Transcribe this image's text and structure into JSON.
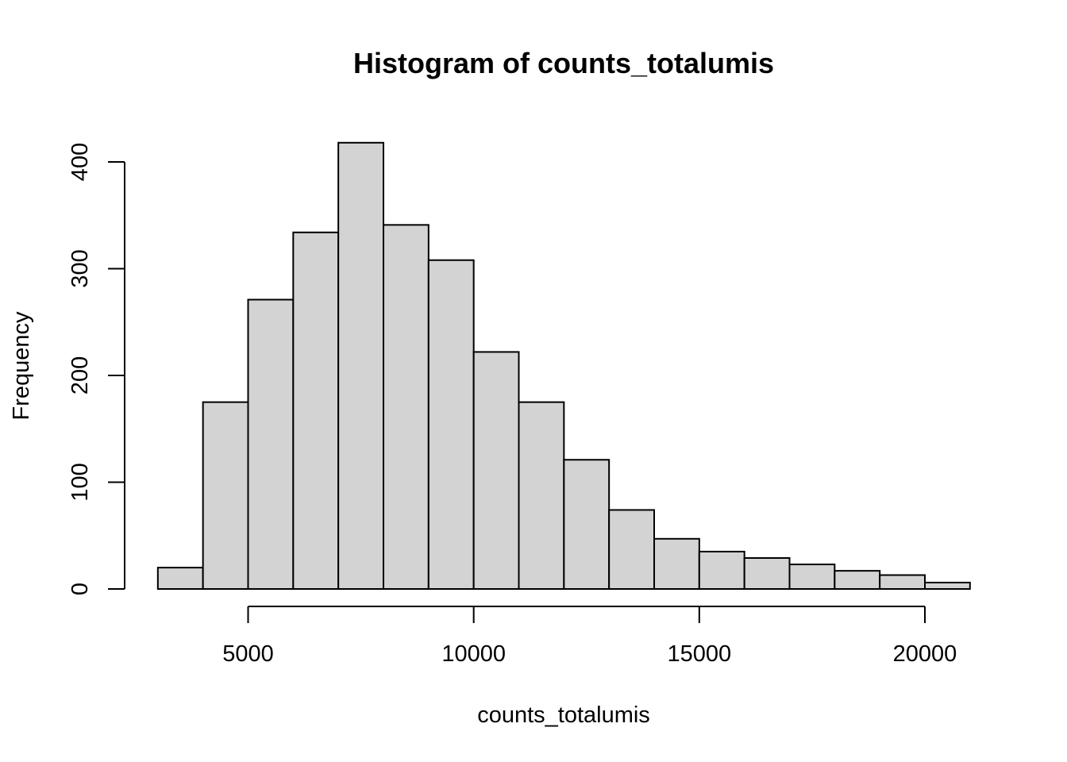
{
  "chart_data": {
    "type": "bar",
    "subtype": "histogram",
    "title": "Histogram of counts_totalumis",
    "xlabel": "counts_totalumis",
    "ylabel": "Frequency",
    "bin_edges": [
      3000,
      4000,
      5000,
      6000,
      7000,
      8000,
      9000,
      10000,
      11000,
      12000,
      13000,
      14000,
      15000,
      16000,
      17000,
      18000,
      19000,
      20000,
      21000
    ],
    "values": [
      20,
      175,
      271,
      334,
      418,
      341,
      308,
      222,
      175,
      121,
      74,
      47,
      35,
      29,
      23,
      17,
      13,
      6
    ],
    "xlim": [
      3000,
      21000
    ],
    "ylim": [
      0,
      418
    ],
    "x_ticks": [
      5000,
      10000,
      15000,
      20000
    ],
    "x_tick_labels": [
      "5000",
      "10000",
      "15000",
      "20000"
    ],
    "y_ticks": [
      0,
      100,
      200,
      300,
      400
    ],
    "y_tick_labels": [
      "0",
      "100",
      "200",
      "300",
      "400"
    ],
    "bar_fill": "#d3d3d3",
    "bar_stroke": "#000000",
    "grid": false,
    "legend": "none"
  }
}
